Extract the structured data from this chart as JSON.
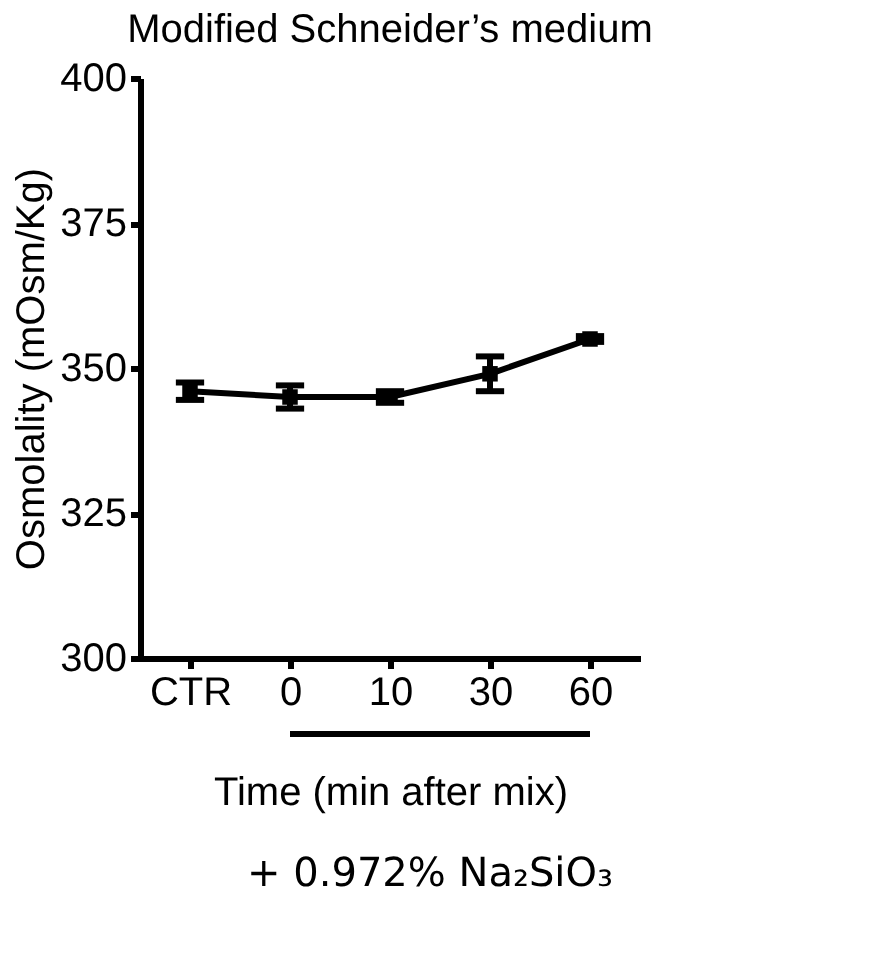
{
  "chart_data": {
    "type": "line",
    "title": "Modified Schneider’s medium",
    "xlabel": "Time (min after mix)",
    "ylabel": "Osmolality (mOsm/Kg)",
    "categories": [
      "CTR",
      "0",
      "10",
      "30",
      "60"
    ],
    "series": [
      {
        "color": "#000000",
        "values": [
          346,
          345,
          345,
          349,
          355
        ],
        "errors": [
          1.5,
          2,
          1,
          3,
          0.5
        ]
      }
    ],
    "ylim": [
      300,
      400
    ],
    "yticks": [
      300,
      325,
      350,
      375,
      400
    ],
    "marker": "square",
    "line_style": "solid",
    "grid": false,
    "annotations": [
      "+ 0.972% Na₂SiO₃"
    ]
  }
}
